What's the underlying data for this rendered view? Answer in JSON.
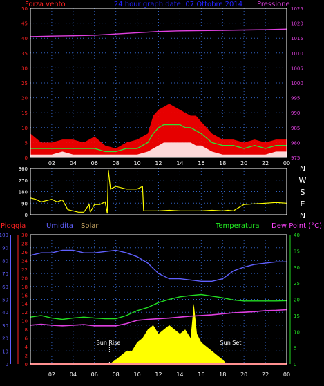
{
  "title": "24 hour graph date: 07 Ottobre 2014",
  "panels": {
    "wind": {
      "label_left": "Forza vento",
      "label_right": "Pressione",
      "y_left": [
        0,
        5,
        10,
        15,
        20,
        25,
        30,
        35,
        40,
        45,
        50
      ],
      "y_right": [
        975,
        980,
        985,
        990,
        995,
        1000,
        1005,
        1010,
        1015,
        1020,
        1025
      ]
    },
    "direction": {
      "y_left": [
        0,
        90,
        180,
        270,
        360
      ],
      "compass": [
        "N",
        "W",
        "S",
        "E",
        "N"
      ]
    },
    "bottom": {
      "label_rain": "Pioggia",
      "label_humidity": "Umidita",
      "label_solar": "Solar",
      "label_temperature": "Temperatura",
      "label_dewpoint": "Dew Point (°C)",
      "y_humidity": [
        0,
        10,
        20,
        30,
        40,
        50,
        60,
        70,
        80,
        90,
        100
      ],
      "y_rain": [
        0,
        2,
        4,
        6,
        8,
        10,
        12,
        14,
        16,
        18,
        20,
        22,
        24,
        26,
        28,
        30
      ],
      "y_temp": [
        0,
        5,
        10,
        15,
        20,
        25,
        30,
        35,
        40
      ],
      "annotations": [
        "Sun Rise",
        "Sun Set"
      ]
    }
  },
  "x_ticks": [
    "02",
    "04",
    "06",
    "08",
    "10",
    "12",
    "14",
    "16",
    "18",
    "20",
    "22",
    "00"
  ],
  "colors": {
    "background": "#000000",
    "frame": "#ffffff",
    "grid": "#3060c0",
    "wind_gust": "#ff0000",
    "wind_avg": "#33dd33",
    "wind_speed": "#ffffff",
    "pressure": "#e040e0",
    "direction": "#ffff00",
    "humidity": "#6060ff",
    "temperature": "#22dd22",
    "dewpoint": "#e040e0",
    "solar": "#ffff00",
    "rain": "#ff2222",
    "title": "#2222ff",
    "wind_label": "#ff2222",
    "solar_label": "#ccaa66",
    "temp_label": "#22ee22",
    "dew_label": "#ff44ff"
  },
  "chart_data": [
    {
      "type": "line",
      "panel": "wind",
      "xlabel": "",
      "ylim": [
        0,
        50
      ],
      "y2lim": [
        975,
        1025
      ],
      "series": [
        {
          "name": "Forza vento",
          "role": "gust",
          "x": [
            0,
            1,
            2,
            3,
            4,
            5,
            6,
            7,
            8,
            9,
            10,
            11,
            11.5,
            12,
            12.5,
            13,
            13.5,
            14,
            14.5,
            15,
            15.5,
            16,
            17,
            18,
            19,
            20,
            21,
            22,
            23,
            24
          ],
          "values": [
            8,
            5,
            5,
            6,
            6,
            5,
            7,
            4,
            3,
            5,
            6,
            8,
            14,
            16,
            17,
            18,
            17,
            16,
            15,
            14,
            14,
            12,
            8,
            6,
            6,
            5,
            6,
            5,
            6,
            6
          ]
        },
        {
          "name": "",
          "role": "avg",
          "x": [
            0,
            1,
            2,
            3,
            4,
            5,
            6,
            7,
            8,
            9,
            10,
            11,
            11.5,
            12,
            12.5,
            13,
            13.5,
            14,
            14.5,
            15,
            15.5,
            16,
            17,
            18,
            19,
            20,
            21,
            22,
            23,
            24
          ],
          "values": [
            3,
            3,
            3,
            3,
            3,
            3,
            3,
            2,
            2,
            3,
            3,
            5,
            8,
            10,
            11,
            11,
            11,
            11,
            10,
            10,
            9,
            8,
            5,
            4,
            4,
            3,
            4,
            3,
            4,
            4
          ]
        },
        {
          "name": "",
          "role": "speed",
          "x": [
            0,
            1,
            2,
            3,
            4,
            5,
            6,
            7,
            8,
            9,
            10,
            11,
            11.5,
            12,
            12.5,
            13,
            13.5,
            14,
            14.5,
            15,
            15.5,
            16,
            17,
            18,
            19,
            20,
            21,
            22,
            23,
            24
          ],
          "values": [
            1,
            1,
            1,
            2,
            1,
            1,
            1,
            1,
            1,
            1,
            1,
            2,
            3,
            4,
            5,
            5,
            5,
            5,
            5,
            5,
            4,
            4,
            2,
            1,
            1,
            1,
            1,
            1,
            2,
            2
          ]
        },
        {
          "name": "Pressione",
          "axis": "right",
          "x": [
            0,
            2,
            4,
            6,
            8,
            10,
            12,
            14,
            16,
            18,
            20,
            22,
            24
          ],
          "values": [
            1015.5,
            1015.7,
            1015.8,
            1016.0,
            1016.4,
            1016.8,
            1017.2,
            1017.4,
            1017.5,
            1017.6,
            1017.7,
            1017.8,
            1018.0
          ]
        }
      ]
    },
    {
      "type": "line",
      "panel": "direction",
      "ylim": [
        0,
        360
      ],
      "series": [
        {
          "name": "",
          "x": [
            0,
            0.5,
            1,
            1.5,
            2,
            2.5,
            3,
            3.5,
            4,
            4.5,
            5,
            5.5,
            5.6,
            6,
            6.5,
            7,
            7.2,
            7.3,
            7.5,
            8,
            9,
            10,
            10.5,
            10.6,
            11,
            12,
            13,
            14,
            15,
            16,
            17,
            18,
            18.5,
            19,
            20,
            21,
            22,
            23,
            24
          ],
          "values": [
            130,
            120,
            100,
            110,
            120,
            100,
            115,
            40,
            30,
            20,
            20,
            80,
            20,
            80,
            80,
            100,
            10,
            350,
            200,
            220,
            200,
            200,
            220,
            30,
            30,
            30,
            35,
            30,
            30,
            30,
            35,
            30,
            35,
            30,
            80,
            85,
            90,
            95,
            90
          ]
        }
      ]
    },
    {
      "type": "line",
      "panel": "bottom",
      "ylim": [
        0,
        100
      ],
      "y2lim": [
        0,
        40
      ],
      "series": [
        {
          "name": "Umidita",
          "axis": "humidity",
          "x": [
            0,
            1,
            2,
            3,
            4,
            5,
            6,
            7,
            8,
            9,
            10,
            11,
            12,
            13,
            14,
            15,
            16,
            17,
            18,
            19,
            20,
            21,
            22,
            23,
            24
          ],
          "values": [
            84,
            86,
            86,
            88,
            88,
            86,
            86,
            87,
            88,
            86,
            83,
            78,
            70,
            66,
            66,
            65,
            64,
            64,
            66,
            72,
            75,
            77,
            78,
            79,
            79
          ]
        },
        {
          "name": "Temperatura",
          "axis": "temp",
          "x": [
            0,
            1,
            2,
            3,
            4,
            5,
            6,
            7,
            8,
            9,
            10,
            11,
            12,
            13,
            14,
            15,
            16,
            17,
            18,
            19,
            20,
            21,
            22,
            23,
            24
          ],
          "values": [
            14.5,
            15.0,
            14.2,
            13.8,
            14.2,
            14.5,
            14.2,
            14.0,
            14.0,
            15.0,
            16.5,
            17.5,
            19.0,
            20.0,
            20.8,
            21.2,
            21.5,
            21.0,
            20.5,
            19.8,
            19.5,
            19.5,
            19.5,
            19.5,
            19.6
          ]
        },
        {
          "name": "Dew Point (°C)",
          "axis": "temp",
          "x": [
            0,
            1,
            2,
            3,
            4,
            5,
            6,
            7,
            8,
            9,
            10,
            11,
            12,
            13,
            14,
            15,
            16,
            17,
            18,
            19,
            20,
            21,
            22,
            23,
            24
          ],
          "values": [
            12.0,
            12.3,
            12.0,
            11.8,
            12.0,
            12.2,
            11.8,
            11.8,
            11.8,
            12.5,
            13.5,
            13.8,
            14.0,
            14.2,
            14.5,
            14.8,
            15.0,
            15.2,
            15.5,
            15.8,
            16.0,
            16.2,
            16.5,
            16.6,
            16.8
          ]
        },
        {
          "name": "Solar",
          "axis": "rain",
          "x": [
            7.4,
            8,
            8.5,
            9,
            9.5,
            10,
            10.5,
            11,
            11.5,
            12,
            12.5,
            13,
            13.5,
            14,
            14.5,
            15,
            15.3,
            15.6,
            16,
            16.5,
            17,
            17.5,
            18,
            18.4
          ],
          "values": [
            0,
            1,
            2,
            3,
            3,
            5,
            6,
            8,
            9,
            7,
            8,
            9,
            8,
            7,
            8,
            6,
            14,
            7,
            5,
            4,
            3,
            2,
            1,
            0
          ]
        },
        {
          "name": "Pioggia",
          "axis": "rain",
          "x": [
            0,
            24
          ],
          "values": [
            0,
            0
          ]
        }
      ]
    }
  ]
}
